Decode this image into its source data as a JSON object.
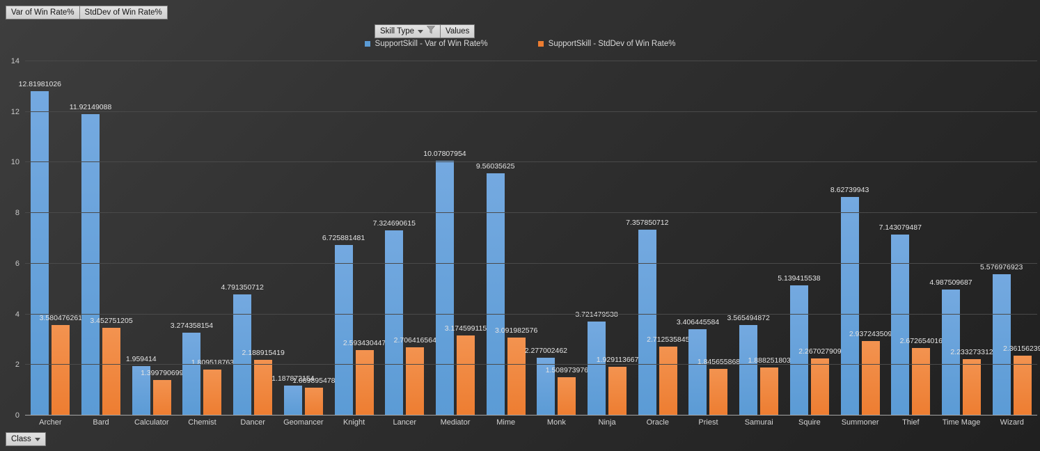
{
  "field_buttons": {
    "value_field_1": "Var of Win Rate%",
    "value_field_2": "StdDev of Win Rate%",
    "axis_field": "Skill Type",
    "values_button": "Values",
    "category_field": "Class"
  },
  "legend": [
    {
      "label": "SupportSkill - Var of Win Rate%",
      "color": "#5b9bd5"
    },
    {
      "label": "SupportSkill - StdDev of Win Rate%",
      "color": "#ed7d31"
    }
  ],
  "colors": {
    "background_dark": "#2b2b2b",
    "gridline": "#4a4a4a",
    "zero_axis": "#a6a6a6",
    "blue_series": "#5b9bd5",
    "blue_series_light": "#74a9e0",
    "orange_series": "#ed7d31",
    "orange_series_light": "#f39350",
    "button_bg": "#d9d9d9",
    "label_text": "#e4e4e4"
  },
  "chart_data": {
    "type": "bar",
    "title": "",
    "xlabel": "",
    "ylabel": "",
    "ylim": [
      0,
      14
    ],
    "yticks": [
      0,
      2,
      4,
      6,
      8,
      10,
      12,
      14
    ],
    "grid": true,
    "legend_position": "top",
    "data_labels": true,
    "categories": [
      "Archer",
      "Bard",
      "Calculator",
      "Chemist",
      "Dancer",
      "Geomancer",
      "Knight",
      "Lancer",
      "Mediator",
      "Mime",
      "Monk",
      "Ninja",
      "Oracle",
      "Priest",
      "Samurai",
      "Squire",
      "Summoner",
      "Thief",
      "Time Mage",
      "Wizard"
    ],
    "series": [
      {
        "name": "SupportSkill - Var of Win Rate%",
        "color": "#5b9bd5",
        "color_light": "#74a9e0",
        "values": [
          12.81981026,
          11.92149088,
          1.959414,
          3.274358154,
          4.791350712,
          1.187872154,
          6.725881481,
          7.324690615,
          10.07807954,
          9.56035625,
          2.277002462,
          3.721479538,
          7.357850712,
          3.406445584,
          3.565494872,
          5.139415538,
          8.62739943,
          7.143079487,
          4.987509687,
          5.576976923
        ]
      },
      {
        "name": "SupportSkill - StdDev of Win Rate%",
        "color": "#ed7d31",
        "color_light": "#f39350",
        "values": [
          3.580476261,
          3.452751205,
          1.399790699,
          1.809518763,
          2.188915419,
          1.089895478,
          2.593430447,
          2.706416564,
          3.174599115,
          3.091982576,
          1.508973976,
          1.929113667,
          2.712535845,
          1.845655868,
          1.888251803,
          2.267027909,
          2.937243509,
          2.672654016,
          2.233273312,
          2.36156239
        ]
      }
    ]
  }
}
